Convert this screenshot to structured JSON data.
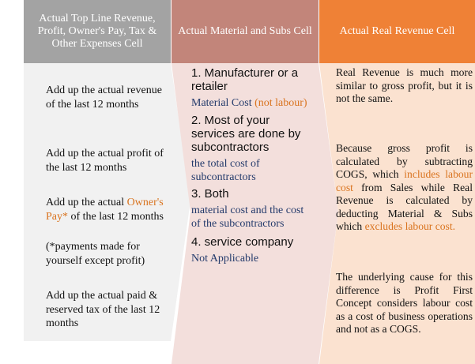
{
  "headers": {
    "col1": "Actual Top Line Revenue, Profit, Owner's Pay, Tax & Other Expenses Cell",
    "col2": "Actual Material and Subs Cell",
    "col3": "Actual Real Revenue Cell"
  },
  "col1": {
    "revenue": "Add up the actual revenue of the last 12 months",
    "profit": "Add up the actual profit of the last 12 months",
    "owners_pay_prefix": "Add up the actual",
    "owners_pay_highlight": "Owner's Pay*",
    "owners_pay_suffix": "of the last 12 months",
    "owners_pay_note": "(*payments made for yourself except profit)",
    "tax": "Add up the actual paid & reserved tax of the last 12 months"
  },
  "col2": {
    "opt1_title": "1. Manufacturer or a retailer",
    "opt1_value": "Material Cost",
    "opt1_note": "(not labour)",
    "opt2_title": "2. Most of your services are done by subcontractors",
    "opt2_value": "the total cost of subcontractors",
    "opt3_title": "3. Both",
    "opt3_value": "material cost and the cost of the subcontractors",
    "opt4_title": "4. service company",
    "opt4_value": "Not Applicable"
  },
  "col3": {
    "para1": "Real Revenue is much more similar to gross profit, but it is not the same.",
    "para2_a": "Because gross profit is calculated by subtracting COGS, which",
    "para2_h1": "includes labour cost",
    "para2_b": "from Sales while Real Revenue is calculated by deducting Material & Subs which",
    "para2_h2": "excludes labour cost.",
    "para3": "The underlying cause for this difference is Profit First Concept considers labour cost as a cost of business operations and not as a COGS."
  },
  "colors": {
    "header_gray": "#a3a3a3",
    "header_rose": "#c2857a",
    "header_orange": "#ef8136",
    "highlight_orange": "#d9731e",
    "value_navy": "#233a6b"
  }
}
